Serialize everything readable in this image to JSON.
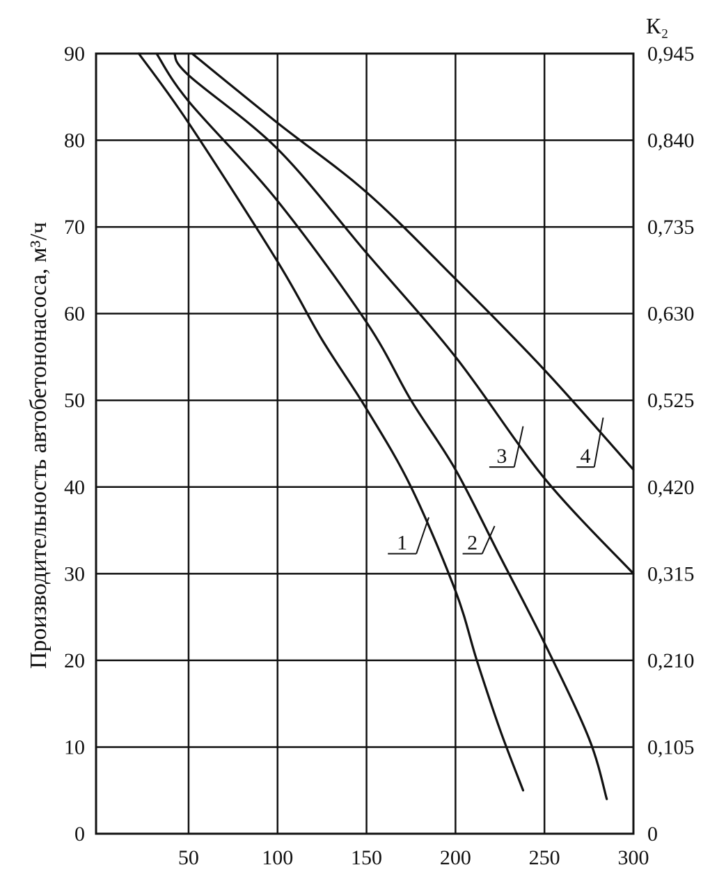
{
  "chart_data": {
    "type": "line",
    "title": "",
    "xlabel": "",
    "ylabel": "Производительность автобетононасоса, м³/ч",
    "y2label": "К₂",
    "xlim": [
      -2,
      300
    ],
    "ylim": [
      0,
      90
    ],
    "grid": true,
    "x_ticks": [
      "50",
      "100",
      "150",
      "200",
      "250",
      "300"
    ],
    "x_tick_values": [
      50,
      100,
      150,
      200,
      250,
      300
    ],
    "y_ticks": [
      "0",
      "10",
      "20",
      "30",
      "40",
      "50",
      "60",
      "70",
      "80",
      "90"
    ],
    "y_tick_values": [
      0,
      10,
      20,
      30,
      40,
      50,
      60,
      70,
      80,
      90
    ],
    "y2_ticks": [
      "0",
      "0,105",
      "0,210",
      "0,315",
      "0,420",
      "0,525",
      "0,630",
      "0,735",
      "0,840",
      "0,945"
    ],
    "y2_tick_values": [
      0,
      10,
      20,
      30,
      40,
      50,
      60,
      70,
      80,
      90
    ],
    "series": [
      {
        "name": "1",
        "points": [
          [
            22,
            90
          ],
          [
            50,
            82
          ],
          [
            100,
            66
          ],
          [
            125,
            57
          ],
          [
            150,
            49
          ],
          [
            175,
            40
          ],
          [
            200,
            28
          ],
          [
            212,
            20
          ],
          [
            225,
            12
          ],
          [
            238,
            5
          ]
        ]
      },
      {
        "name": "2",
        "points": [
          [
            32,
            90
          ],
          [
            50,
            84.5
          ],
          [
            100,
            73
          ],
          [
            150,
            59
          ],
          [
            175,
            50
          ],
          [
            200,
            42
          ],
          [
            225,
            32
          ],
          [
            250,
            22
          ],
          [
            275,
            11
          ],
          [
            285,
            4
          ]
        ]
      },
      {
        "name": "3",
        "points": [
          [
            42,
            90
          ],
          [
            50,
            87.5
          ],
          [
            100,
            79
          ],
          [
            150,
            67
          ],
          [
            200,
            55
          ],
          [
            250,
            41
          ],
          [
            300,
            30
          ]
        ]
      },
      {
        "name": "4",
        "points": [
          [
            52,
            90
          ],
          [
            100,
            82
          ],
          [
            150,
            74
          ],
          [
            200,
            64
          ],
          [
            250,
            53.5
          ],
          [
            300,
            42
          ]
        ]
      }
    ],
    "callout_labels": [
      "1",
      "2",
      "3",
      "4"
    ]
  }
}
